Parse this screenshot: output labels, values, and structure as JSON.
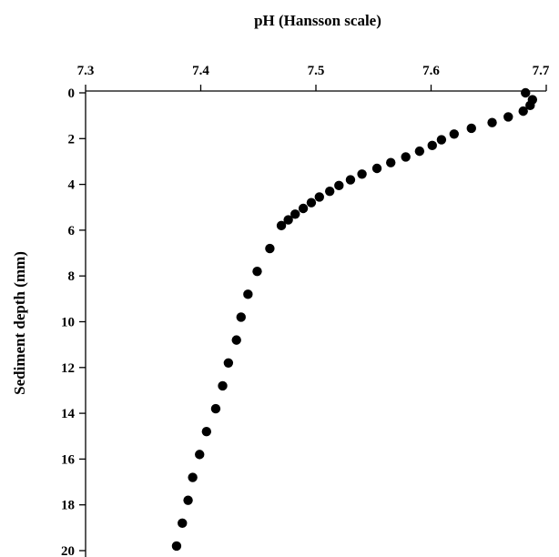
{
  "chart_data": {
    "type": "scatter",
    "title": "",
    "xlabel": "pH (Hansson scale)",
    "ylabel": "Sediment depth (mm)",
    "xlim": [
      7.3,
      7.7
    ],
    "ylim": [
      0,
      20
    ],
    "y_inverted": true,
    "x_axis_position": "top",
    "grid": false,
    "x_ticks": [
      "7.3",
      "7.4",
      "7.5",
      "7.6",
      "7.7"
    ],
    "y_ticks": [
      "0",
      "2",
      "4",
      "6",
      "8",
      "10",
      "12",
      "14",
      "16",
      "18",
      "20"
    ],
    "marker_color": "#000000",
    "points": [
      {
        "x": 7.682,
        "y": 0.0
      },
      {
        "x": 7.688,
        "y": 0.3
      },
      {
        "x": 7.686,
        "y": 0.55
      },
      {
        "x": 7.68,
        "y": 0.8
      },
      {
        "x": 7.667,
        "y": 1.05
      },
      {
        "x": 7.653,
        "y": 1.3
      },
      {
        "x": 7.635,
        "y": 1.55
      },
      {
        "x": 7.62,
        "y": 1.8
      },
      {
        "x": 7.609,
        "y": 2.05
      },
      {
        "x": 7.601,
        "y": 2.3
      },
      {
        "x": 7.59,
        "y": 2.55
      },
      {
        "x": 7.578,
        "y": 2.8
      },
      {
        "x": 7.565,
        "y": 3.05
      },
      {
        "x": 7.553,
        "y": 3.3
      },
      {
        "x": 7.54,
        "y": 3.55
      },
      {
        "x": 7.53,
        "y": 3.8
      },
      {
        "x": 7.52,
        "y": 4.05
      },
      {
        "x": 7.512,
        "y": 4.3
      },
      {
        "x": 7.503,
        "y": 4.55
      },
      {
        "x": 7.496,
        "y": 4.8
      },
      {
        "x": 7.489,
        "y": 5.05
      },
      {
        "x": 7.482,
        "y": 5.3
      },
      {
        "x": 7.476,
        "y": 5.55
      },
      {
        "x": 7.47,
        "y": 5.8
      },
      {
        "x": 7.46,
        "y": 6.8
      },
      {
        "x": 7.449,
        "y": 7.8
      },
      {
        "x": 7.441,
        "y": 8.8
      },
      {
        "x": 7.435,
        "y": 9.8
      },
      {
        "x": 7.431,
        "y": 10.8
      },
      {
        "x": 7.424,
        "y": 11.8
      },
      {
        "x": 7.419,
        "y": 12.8
      },
      {
        "x": 7.413,
        "y": 13.8
      },
      {
        "x": 7.405,
        "y": 14.8
      },
      {
        "x": 7.399,
        "y": 15.8
      },
      {
        "x": 7.393,
        "y": 16.8
      },
      {
        "x": 7.389,
        "y": 17.8
      },
      {
        "x": 7.384,
        "y": 18.8
      },
      {
        "x": 7.379,
        "y": 19.8
      }
    ]
  }
}
